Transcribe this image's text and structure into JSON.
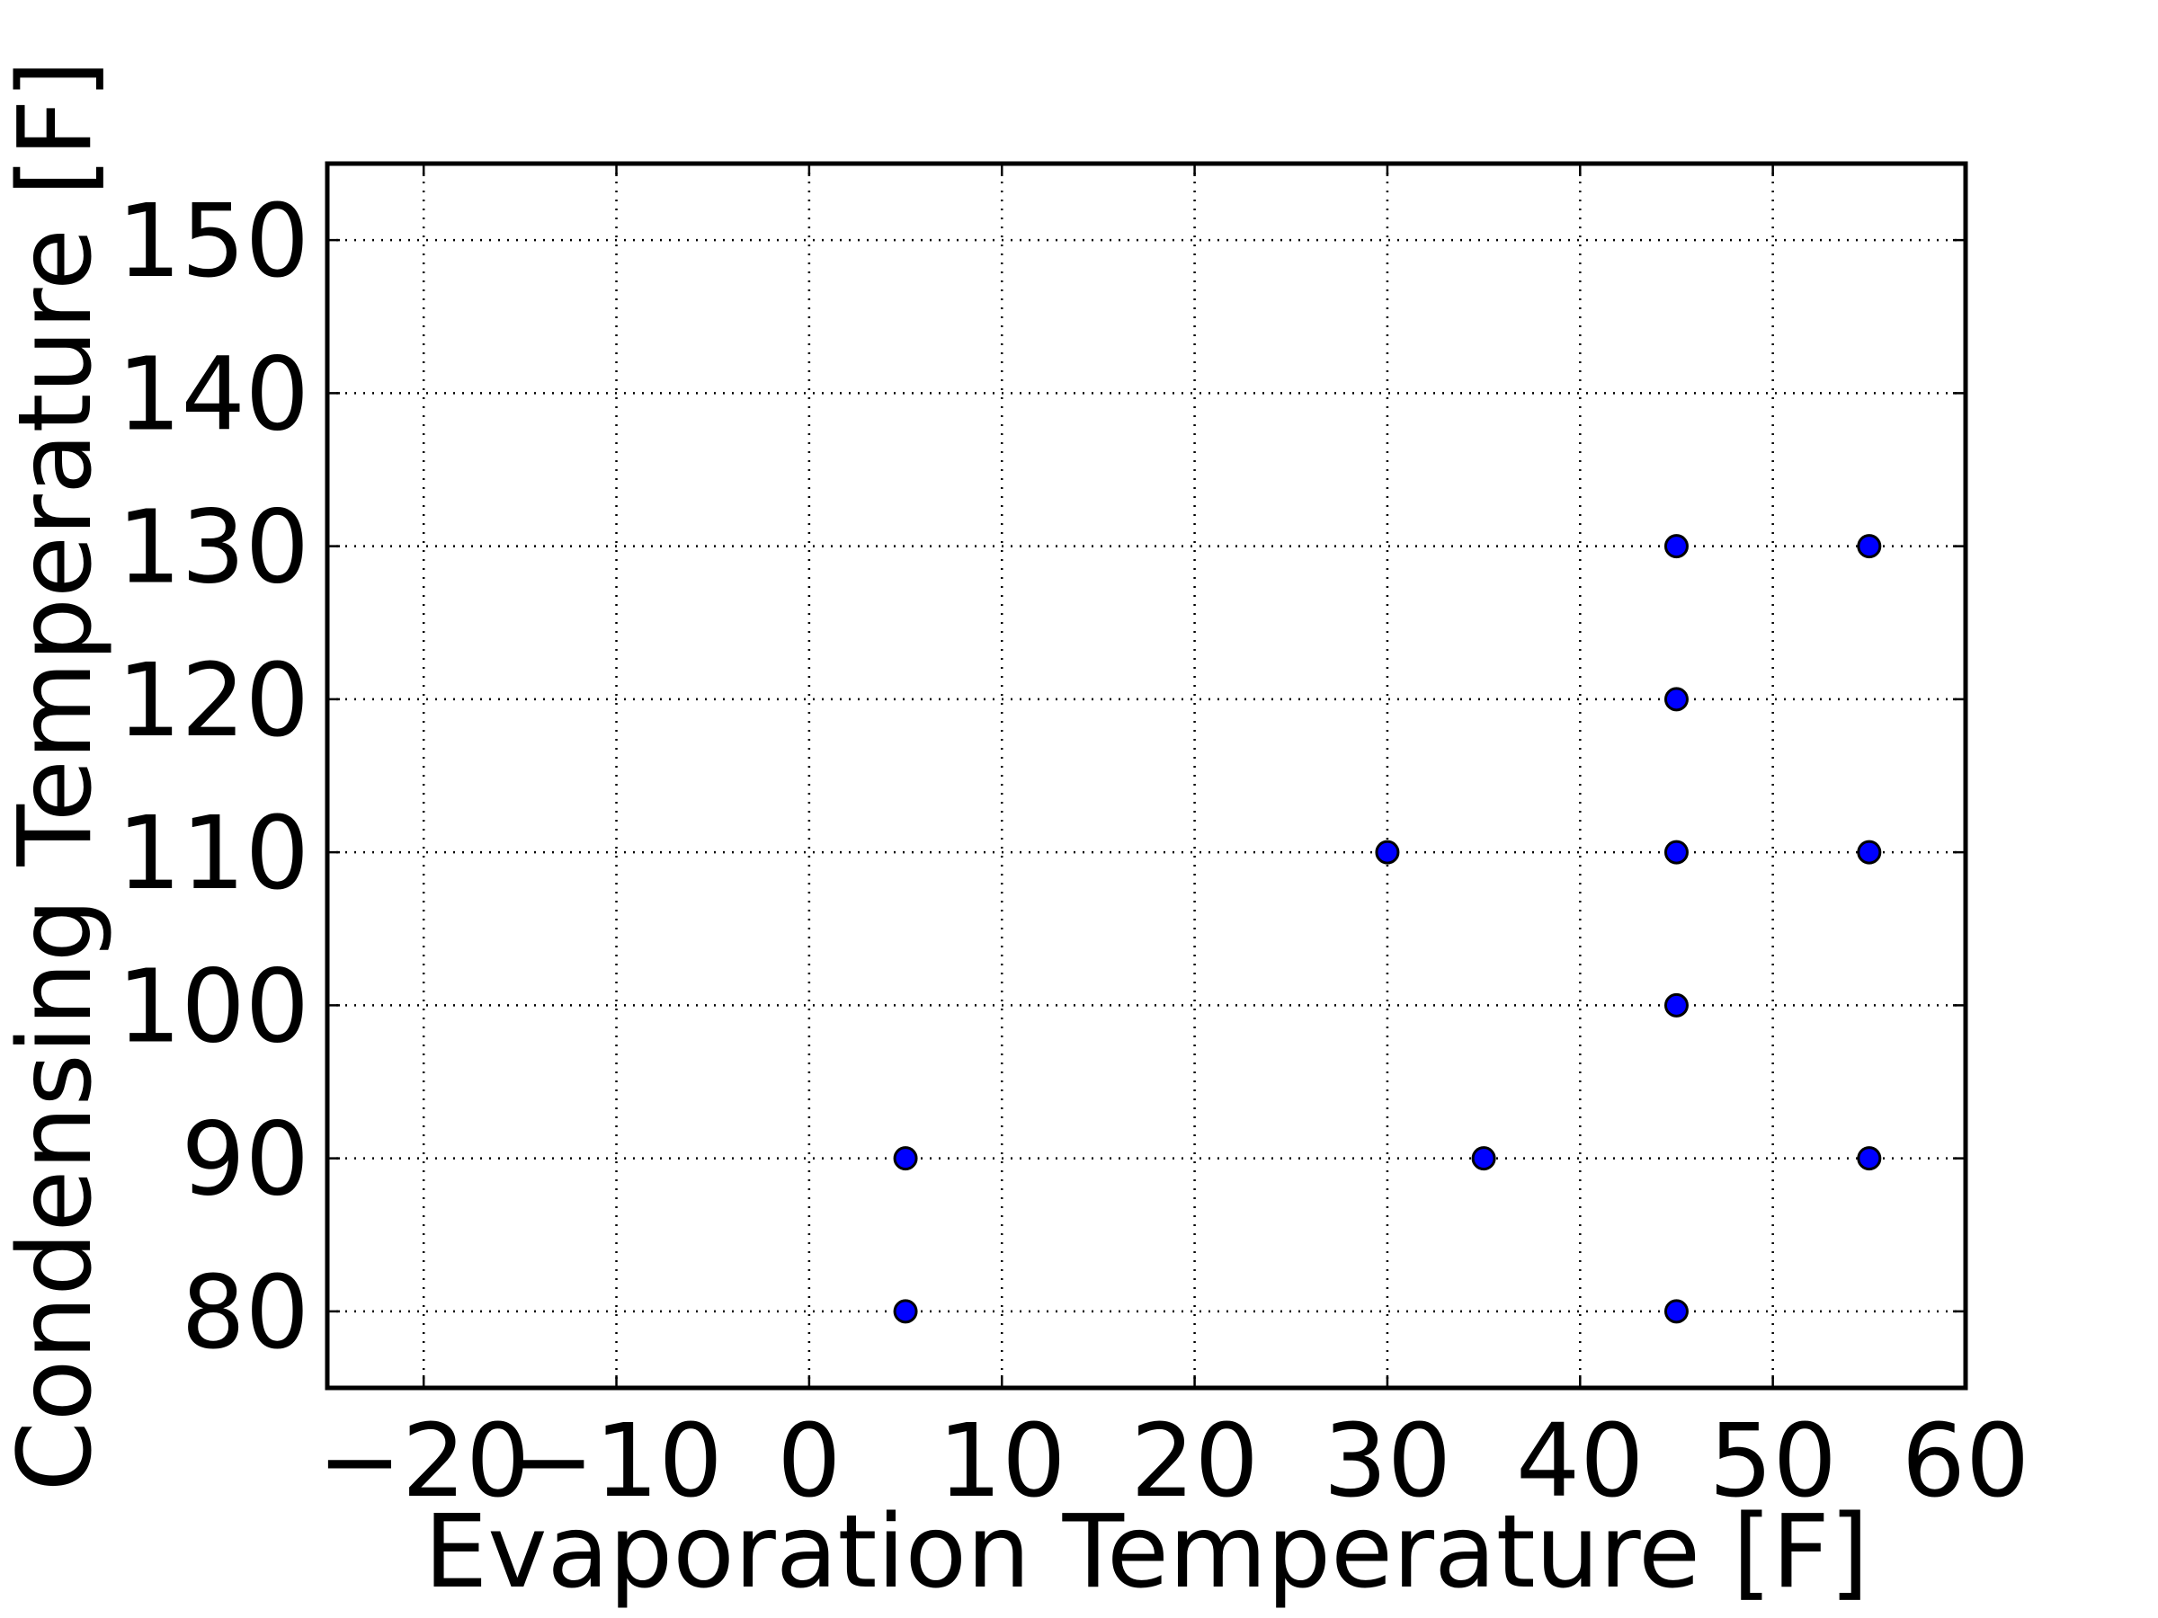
{
  "chart_data": {
    "type": "scatter",
    "title": "",
    "xlabel": "Evaporation Temperature [F]",
    "ylabel": "Condensing Temperature [F]",
    "xlim": [
      -25,
      60
    ],
    "ylim": [
      75,
      155
    ],
    "x_ticks": [
      -20,
      -10,
      0,
      10,
      20,
      30,
      40,
      50,
      60
    ],
    "x_tick_labels": [
      "−20",
      "−10",
      "0",
      "10",
      "20",
      "30",
      "40",
      "50",
      "60"
    ],
    "y_ticks": [
      80,
      90,
      100,
      110,
      120,
      130,
      140,
      150
    ],
    "y_tick_labels": [
      "80",
      "90",
      "100",
      "110",
      "120",
      "130",
      "140",
      "150"
    ],
    "grid": true,
    "legend": false,
    "marker_color": "#0000ff",
    "series": [
      {
        "points": [
          {
            "x": 5,
            "y": 80
          },
          {
            "x": 5,
            "y": 90
          },
          {
            "x": 30,
            "y": 110
          },
          {
            "x": 35,
            "y": 90
          },
          {
            "x": 45,
            "y": 80
          },
          {
            "x": 45,
            "y": 100
          },
          {
            "x": 45,
            "y": 110
          },
          {
            "x": 45,
            "y": 120
          },
          {
            "x": 45,
            "y": 130
          },
          {
            "x": 55,
            "y": 90
          },
          {
            "x": 55,
            "y": 110
          },
          {
            "x": 55,
            "y": 130
          }
        ]
      }
    ]
  }
}
